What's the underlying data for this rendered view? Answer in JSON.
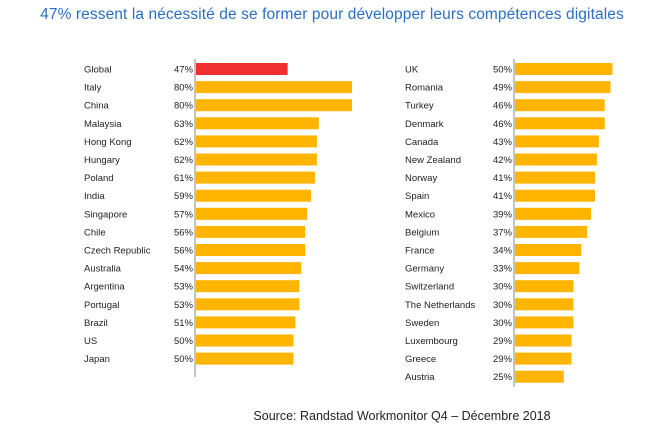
{
  "title": "47% ressent la nécessité de se former pour développer leurs compétences digitales",
  "source": "Source: Randstad Workmonitor Q4 – Décembre 2018",
  "colors": {
    "bar": "#ffb400",
    "highlight": "#f03030",
    "title": "#2a6fc4",
    "axis": "#888888"
  },
  "chart_data": [
    {
      "type": "bar",
      "orientation": "horizontal",
      "xlim": [
        0,
        100
      ],
      "categories": [
        "Global",
        "Italy",
        "China",
        "Malaysia",
        "Hong Kong",
        "Hungary",
        "Poland",
        "India",
        "Singapore",
        "Chile",
        "Czech Republic",
        "Australia",
        "Argentina",
        "Portugal",
        "Brazil",
        "US",
        "Japan"
      ],
      "values": [
        47,
        80,
        80,
        63,
        62,
        62,
        61,
        59,
        57,
        56,
        56,
        54,
        53,
        53,
        51,
        50,
        50
      ],
      "value_labels": [
        "47%",
        "80%",
        "80%",
        "63%",
        "62%",
        "62%",
        "61%",
        "59%",
        "57%",
        "56%",
        "56%",
        "54%",
        "53%",
        "53%",
        "51%",
        "50%",
        "50%"
      ],
      "highlight": "Global"
    },
    {
      "type": "bar",
      "orientation": "horizontal",
      "xlim": [
        0,
        100
      ],
      "categories": [
        "UK",
        "Romania",
        "Turkey",
        "Denmark",
        "Canada",
        "New Zealand",
        "Norway",
        "Spain",
        "Mexico",
        "Belgium",
        "France",
        "Germany",
        "Switzerland",
        "The Netherlands",
        "Sweden",
        "Luxembourg",
        "Greece",
        "Austria"
      ],
      "values": [
        50,
        49,
        46,
        46,
        43,
        42,
        41,
        41,
        39,
        37,
        34,
        33,
        30,
        30,
        30,
        29,
        29,
        25
      ],
      "value_labels": [
        "50%",
        "49%",
        "46%",
        "46%",
        "43%",
        "42%",
        "41%",
        "41%",
        "39%",
        "37%",
        "34%",
        "33%",
        "30%",
        "30%",
        "30%",
        "29%",
        "29%",
        "25%"
      ]
    }
  ]
}
